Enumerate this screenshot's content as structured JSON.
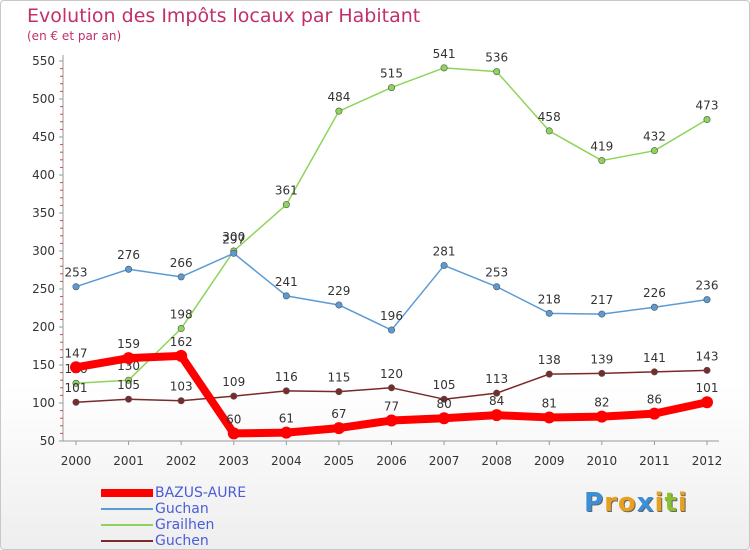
{
  "title": "Evolution des Impôts locaux par Habitant",
  "subtitle": "(en € et par an)",
  "brand": {
    "letters": [
      "P",
      "r",
      "o",
      "x",
      "i",
      "t",
      "i"
    ],
    "colors": [
      "#3a8fd8",
      "#e8a020",
      "#e8a020",
      "#3a8fd8",
      "#e8a020",
      "#8ac030",
      "#e8a020"
    ]
  },
  "chart_data": {
    "type": "line",
    "x": [
      "2000",
      "2001",
      "2002",
      "2003",
      "2004",
      "2005",
      "2006",
      "2007",
      "2008",
      "2009",
      "2010",
      "2011",
      "2012"
    ],
    "ylim": [
      50,
      550
    ],
    "yticks": [
      50,
      100,
      150,
      200,
      250,
      300,
      350,
      400,
      450,
      500,
      550
    ],
    "grid": false,
    "legend_position": "bottom-left",
    "series": [
      {
        "name": "BAZUS-AURE",
        "color": "#ff0000",
        "values": [
          147,
          159,
          162,
          60,
          61,
          67,
          77,
          80,
          84,
          81,
          82,
          86,
          101
        ]
      },
      {
        "name": "Guchan",
        "color": "#5b9bd5",
        "values": [
          253,
          276,
          266,
          297,
          241,
          229,
          196,
          281,
          253,
          218,
          217,
          226,
          236
        ]
      },
      {
        "name": "Grailhen",
        "color": "#8ed45a",
        "values": [
          126,
          130,
          198,
          300,
          361,
          484,
          515,
          541,
          536,
          458,
          419,
          432,
          473
        ]
      },
      {
        "name": "Guchen",
        "color": "#7a2a2a",
        "values": [
          101,
          105,
          103,
          109,
          116,
          115,
          120,
          105,
          113,
          138,
          139,
          141,
          143
        ]
      }
    ]
  }
}
